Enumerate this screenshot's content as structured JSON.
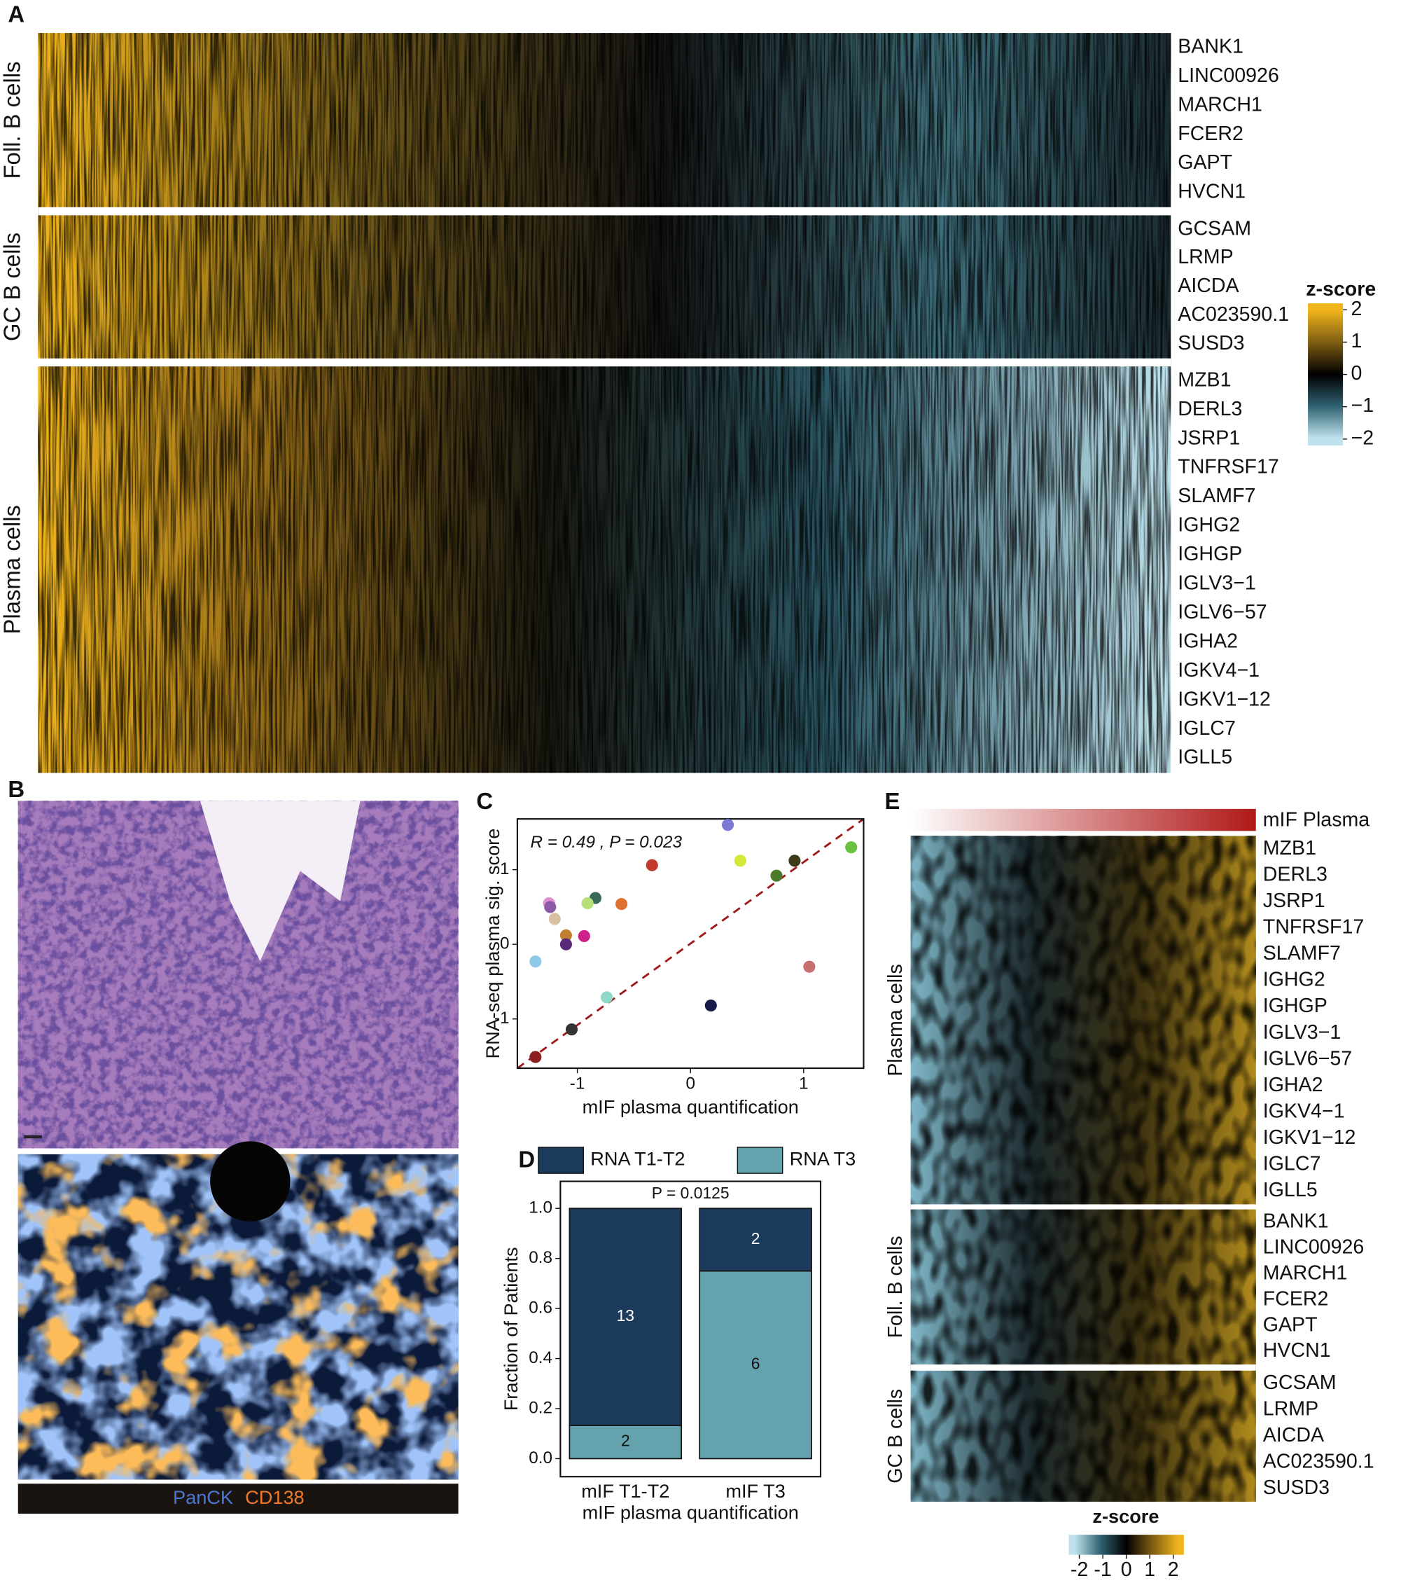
{
  "panel_labels": [
    "A",
    "B",
    "C",
    "D",
    "E"
  ],
  "heatmap_a": {
    "groups": [
      {
        "name": "Foll. B cells",
        "genes": [
          "BANK1",
          "LINC00926",
          "MARCH1",
          "FCER2",
          "GAPT",
          "HVCN1"
        ]
      },
      {
        "name": "GC B cells",
        "genes": [
          "GCSAM",
          "LRMP",
          "AICDA",
          "AC023590.1",
          "SUSD3"
        ]
      },
      {
        "name": "Plasma cells",
        "genes": [
          "MZB1",
          "DERL3",
          "JSRP1",
          "TNFRSF17",
          "SLAMF7",
          "IGHG2",
          "IGHGP",
          "IGLV3−1",
          "IGLV6−57",
          "IGHA2",
          "IGKV4−1",
          "IGKV1−12",
          "IGLC7",
          "IGLL5"
        ]
      }
    ],
    "colorbar": {
      "title": "z-score",
      "lim": [
        -2.2,
        2.2
      ],
      "ticks": [
        2,
        1,
        0,
        {
          "value": -1,
          "label": "−1"
        },
        {
          "value": -2,
          "label": "−2"
        }
      ]
    }
  },
  "image_b": {
    "legend": [
      "PanCK",
      "CD138"
    ]
  },
  "chart_data": [
    {
      "type": "scatter",
      "annotation": "R = 0.49 , P = 0.023",
      "xlabel": "mIF plasma quantification",
      "ylabel": "RNA-seq plasma sig. score",
      "x": [
        0.33,
        -0.34,
        0.44,
        0.92,
        1.42,
        0.76,
        -1.25,
        -1.24,
        -0.84,
        -0.91,
        -0.61,
        -1.2,
        -1.1,
        -0.94,
        -1.1,
        -1.37,
        1.05,
        -0.74,
        0.18,
        -1.05,
        -1.37
      ],
      "values": [
        1.6,
        1.06,
        1.12,
        1.12,
        1.3,
        0.92,
        0.55,
        0.5,
        0.62,
        0.55,
        0.54,
        0.34,
        0.12,
        0.11,
        0,
        -0.23,
        -0.3,
        -0.71,
        -0.82,
        -1.14,
        -1.51
      ],
      "colors": [
        "#7a7ad6",
        "#c0392b",
        "#d4e83a",
        "#3d3d1a",
        "#6ac040",
        "#4a7a2a",
        "#e090d0",
        "#8a5aa8",
        "#3a6a5a",
        "#b8e07a",
        "#e07030",
        "#d8c0a0",
        "#c08030",
        "#d0208a",
        "#5a2a7a",
        "#90c8e8",
        "#c87070",
        "#90d8c8",
        "#1a1a4a",
        "#333333",
        "#8a2020"
      ],
      "xlim": [
        -1.53,
        1.53
      ],
      "ylim": [
        -1.66,
        1.68
      ],
      "xticks": [
        -1,
        0,
        1
      ],
      "yticks": [
        -1,
        0,
        1
      ]
    },
    {
      "type": "bar",
      "stacked": true,
      "annotation": "P = 0.0125",
      "xlabel": "mIF plasma quantification",
      "ylabel": "Fraction of Patients",
      "categories": [
        "mIF T1-T2",
        "mIF T3"
      ],
      "series": [
        {
          "name": "RNA T3",
          "color": "#64a3ad",
          "values": [
            0.133,
            0.75
          ],
          "counts": [
            2,
            6
          ]
        },
        {
          "name": "RNA T1-T2",
          "color": "#1c3a5c",
          "values": [
            0.867,
            0.25
          ],
          "counts": [
            13,
            2
          ]
        }
      ],
      "ylim": [
        -0.072,
        1.108
      ],
      "yticks": [
        {
          "value": 0,
          "label": "0.0"
        },
        0.2,
        0.4,
        0.6,
        0.8,
        {
          "value": 1,
          "label": "1.0"
        }
      ]
    }
  ],
  "heatmap_e": {
    "annotation": "mIF Plasma",
    "groups": [
      {
        "name": "Plasma cells",
        "genes": [
          "MZB1",
          "DERL3",
          "JSRP1",
          "TNFRSF17",
          "SLAMF7",
          "IGHG2",
          "IGHGP",
          "IGLV3−1",
          "IGLV6−57",
          "IGHA2",
          "IGKV4−1",
          "IGKV1−12",
          "IGLC7",
          "IGLL5"
        ]
      },
      {
        "name": "Foll. B cells",
        "genes": [
          "BANK1",
          "LINC00926",
          "MARCH1",
          "FCER2",
          "GAPT",
          "HVCN1"
        ]
      },
      {
        "name": "GC B cells",
        "genes": [
          "GCSAM",
          "LRMP",
          "AICDA",
          "AC023590.1",
          "SUSD3"
        ]
      }
    ],
    "colorbar": {
      "title": "z-score",
      "lim": [
        -2.45,
        2.45
      ],
      "ticks": [
        -2,
        -1,
        0,
        1,
        2
      ]
    }
  }
}
